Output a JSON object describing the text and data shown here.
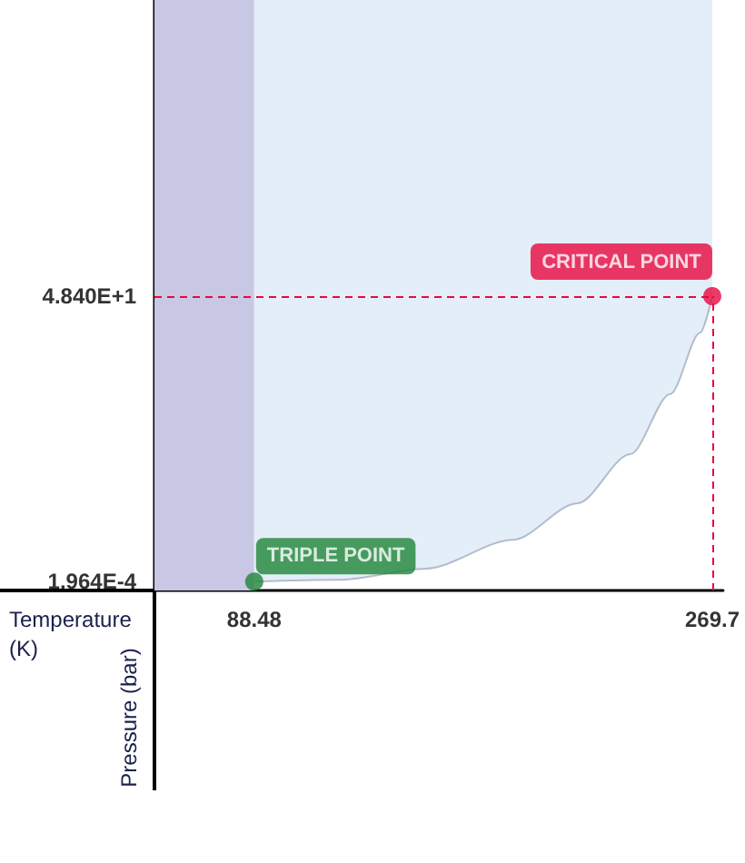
{
  "chart_data": {
    "type": "line",
    "xlabel": "Temperature (K)",
    "ylabel": "Pressure (bar)",
    "xlim": [
      49,
      274
    ],
    "ylim": [
      -1.5,
      98.6
    ],
    "xticks": [
      {
        "value": 88.48,
        "label": "88.48"
      },
      {
        "value": 269.7,
        "label": "269.7"
      }
    ],
    "yticks": [
      {
        "value": 0.0001964,
        "label": "1.964E-4"
      },
      {
        "value": 48.4,
        "label": "4.840E+1"
      }
    ],
    "series": [
      {
        "color": "#b4bccb",
        "marker": "none",
        "x": [
          88.48,
          121.7,
          156.3,
          190.9,
          216.4,
          237.2,
          253.1,
          264.9,
          269.7
        ],
        "values": [
          0.0001964,
          0.3,
          2.2,
          7.1,
          13.3,
          21.6,
          31.8,
          42.2,
          48.4
        ]
      },
      {
        "type": "scatter",
        "colors": [
          "#1e8537",
          "#e8083e"
        ],
        "x": [
          88.48,
          269.7
        ],
        "values": [
          0.0001964,
          48.4
        ]
      }
    ],
    "annotations": [
      {
        "text": "TRIPLE POINT",
        "x": 88.48,
        "y": 0.0001964
      },
      {
        "text": "CRITICAL POINT",
        "x": 269.7,
        "y": 48.4
      }
    ],
    "bands": [
      {
        "axis": "x",
        "from": 49,
        "to": 88.48,
        "color": "#c8c8e4"
      },
      {
        "axis": "x",
        "from": 88.48,
        "to": 269.7,
        "color": "#e4eef9"
      }
    ],
    "ref_lines": [
      {
        "axis": "y",
        "value": 48.4,
        "color": "#e8083e",
        "line_style": "dashed"
      },
      {
        "axis": "x",
        "value": 269.7,
        "color": "#e8083e",
        "line_style": "dashed"
      }
    ],
    "grid": false,
    "marker": "circle"
  }
}
